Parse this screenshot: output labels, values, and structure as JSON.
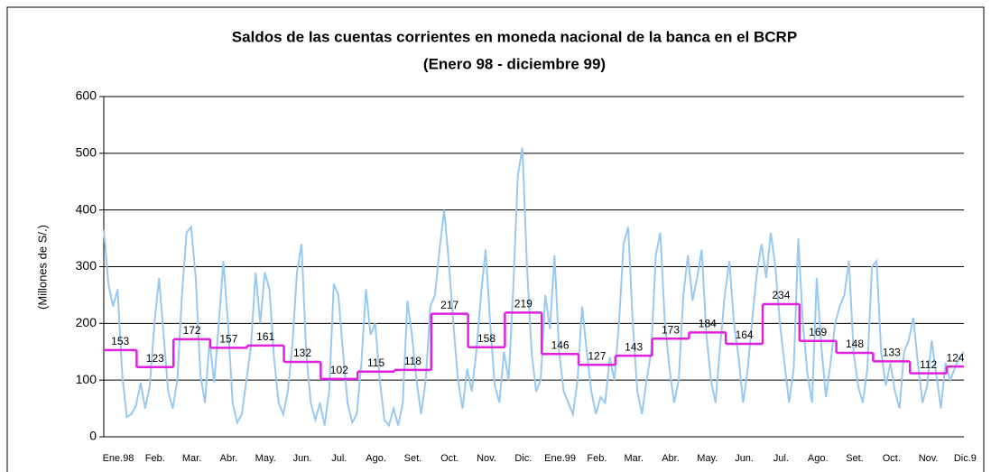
{
  "chart_data": {
    "type": "line",
    "title": "Saldos de las cuentas corrientes en moneda nacional de la banca en el BCRP",
    "subtitle": "(Enero 98 - diciembre 99)",
    "y_label": "(Millones de S/.)",
    "categories": [
      "Ene.98",
      "Feb.",
      "Mar.",
      "Abr.",
      "May.",
      "Jun.",
      "Jul.",
      "Ago.",
      "Set.",
      "Oct.",
      "Nov.",
      "Dic.",
      "Ene.99",
      "Feb.",
      "Mar.",
      "Abr.",
      "May.",
      "Jun.",
      "Jul.",
      "Ago.",
      "Set.",
      "Oct.",
      "Nov.",
      "Dic.9"
    ],
    "series": [
      {
        "color": "#e020e0",
        "values": [
          153,
          123,
          172,
          157,
          161,
          132,
          102,
          115,
          118,
          217,
          158,
          219,
          146,
          127,
          143,
          173,
          184,
          164,
          234,
          169,
          148,
          133,
          112,
          124
        ]
      }
    ],
    "daily": {
      "color": "#99c9f0",
      "values": [
        365,
        270,
        230,
        260,
        110,
        35,
        40,
        55,
        95,
        50,
        90,
        200,
        280,
        180,
        80,
        50,
        100,
        250,
        360,
        370,
        280,
        110,
        60,
        170,
        95,
        200,
        310,
        200,
        60,
        25,
        40,
        100,
        160,
        290,
        200,
        290,
        260,
        140,
        60,
        40,
        80,
        160,
        290,
        340,
        150,
        60,
        30,
        60,
        20,
        80,
        270,
        250,
        150,
        60,
        25,
        40,
        130,
        260,
        180,
        200,
        100,
        30,
        20,
        50,
        20,
        60,
        240,
        180,
        100,
        40,
        100,
        230,
        250,
        330,
        400,
        310,
        200,
        100,
        50,
        120,
        80,
        150,
        250,
        330,
        200,
        90,
        60,
        150,
        100,
        260,
        460,
        510,
        300,
        150,
        80,
        100,
        250,
        190,
        320,
        150,
        80,
        60,
        40,
        100,
        230,
        150,
        80,
        40,
        70,
        60,
        140,
        100,
        200,
        340,
        370,
        200,
        80,
        40,
        100,
        150,
        320,
        360,
        200,
        120,
        60,
        100,
        250,
        320,
        240,
        280,
        330,
        180,
        100,
        60,
        160,
        250,
        310,
        200,
        140,
        60,
        120,
        210,
        290,
        340,
        280,
        360,
        300,
        200,
        130,
        60,
        120,
        350,
        200,
        110,
        60,
        280,
        160,
        70,
        130,
        200,
        230,
        250,
        310,
        150,
        90,
        60,
        120,
        300,
        310,
        150,
        90,
        130,
        80,
        50,
        150,
        170,
        210,
        130,
        60,
        90,
        170,
        110,
        50,
        130,
        100,
        120,
        140,
        150
      ]
    },
    "ylim": [
      0,
      600
    ],
    "yticks": [
      0,
      100,
      200,
      300,
      400,
      500,
      600
    ],
    "grid": true
  }
}
